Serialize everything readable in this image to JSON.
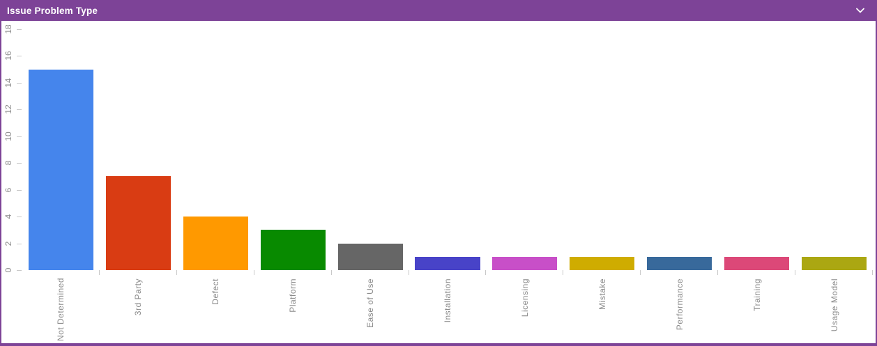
{
  "header": {
    "title": "Issue Problem Type",
    "icon": "chevron-down"
  },
  "colors": {
    "accent_purple": "#7D4397",
    "header_text": "#FFFFFF",
    "axis_label": "#8A8A8A",
    "tick": "#C9C9C9",
    "background": "#FFFFFF"
  },
  "chart_data": {
    "type": "bar",
    "title": "Issue Problem Type",
    "categories": [
      "Not Determined",
      "3rd Party",
      "Defect",
      "Platform",
      "Ease of Use",
      "Installation",
      "Licensing",
      "Mistake",
      "Performance",
      "Training",
      "Usage Model"
    ],
    "values": [
      15,
      7,
      4,
      3,
      2,
      1,
      1,
      1,
      1,
      1,
      1
    ],
    "bar_colors": [
      "#4585EC",
      "#D93C13",
      "#FF9900",
      "#088A00",
      "#666666",
      "#4843C8",
      "#C84FC8",
      "#CFAC00",
      "#38699B",
      "#DC4878",
      "#ABA712"
    ],
    "xlabel": "",
    "ylabel": "",
    "ylim": [
      0,
      18
    ],
    "yticks": [
      0,
      2,
      4,
      6,
      8,
      10,
      12,
      14,
      16,
      18
    ],
    "grid": false,
    "legend": "none",
    "x_label_rotation": -90,
    "y_label_rotation": -90
  }
}
